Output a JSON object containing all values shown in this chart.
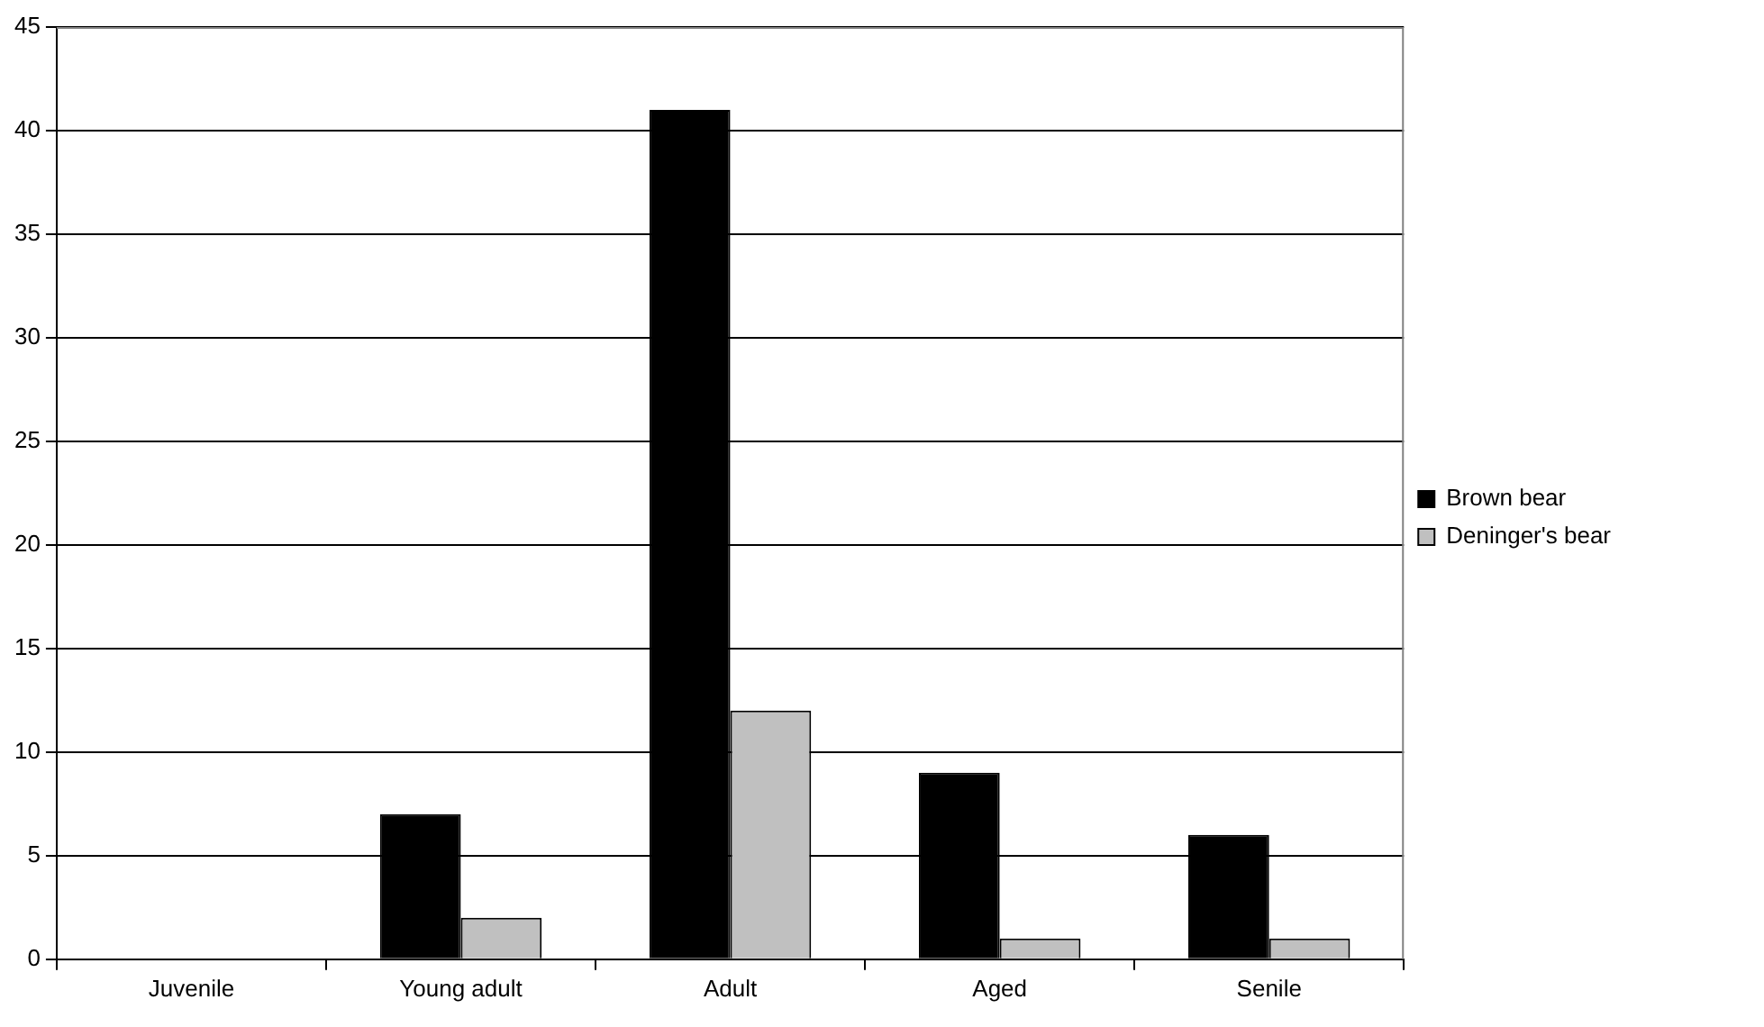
{
  "chart_data": {
    "type": "bar",
    "categories": [
      "Juvenile",
      "Young adult",
      "Adult",
      "Aged",
      "Senile"
    ],
    "series": [
      {
        "name": "Brown bear",
        "color": "#000000",
        "values": [
          0,
          7,
          41,
          9,
          6
        ]
      },
      {
        "name": "Deninger's bear",
        "color": "#c0c0c0",
        "values": [
          0,
          2,
          12,
          1,
          1
        ]
      }
    ],
    "ylim": [
      0,
      45
    ],
    "yticks": [
      0,
      5,
      10,
      15,
      20,
      25,
      30,
      35,
      40,
      45
    ],
    "grid": "y",
    "legend": "right"
  }
}
